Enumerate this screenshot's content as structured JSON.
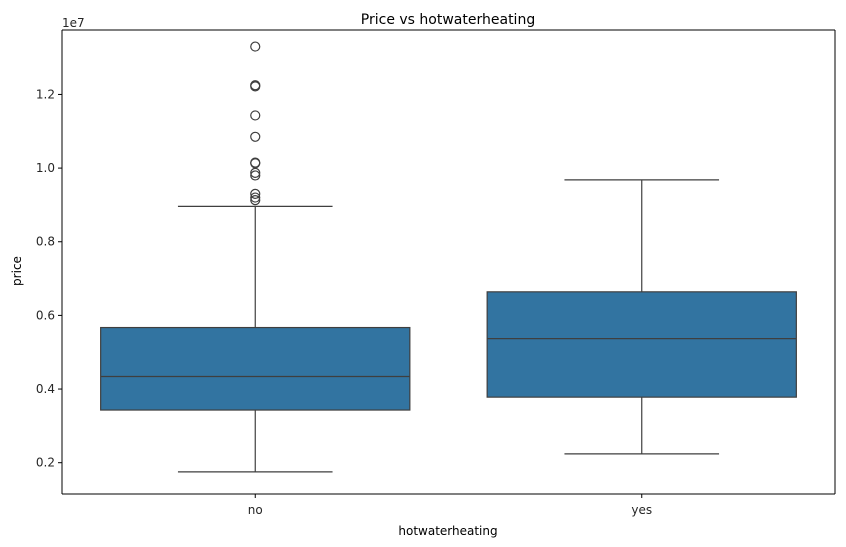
{
  "chart_data": {
    "type": "box",
    "title": "Price vs hotwaterheating",
    "xlabel": "hotwaterheating",
    "ylabel": "price",
    "y_offset_label": "1e7",
    "categories": [
      "no",
      "yes"
    ],
    "y_ticks": [
      0.2,
      0.4,
      0.6,
      0.8,
      1.0,
      1.2
    ],
    "y_tick_labels": [
      "0.2",
      "0.4",
      "0.6",
      "0.8",
      "1.0",
      "1.2"
    ],
    "ylim": [
      0.115,
      1.375
    ],
    "grid": false,
    "box_color": "#3274a1",
    "edge_color": "#3f3f3f",
    "boxes": [
      {
        "category": "no",
        "whisker_low": 0.175,
        "q1": 0.343,
        "median": 0.434,
        "q3": 0.567,
        "whisker_high": 0.896,
        "outliers": [
          1.33,
          1.225,
          1.222,
          1.143,
          1.085,
          1.015,
          1.013,
          0.987,
          0.98,
          0.93,
          0.92,
          0.913
        ]
      },
      {
        "category": "yes",
        "whisker_low": 0.224,
        "q1": 0.378,
        "median": 0.537,
        "q3": 0.664,
        "whisker_high": 0.968,
        "outliers": []
      }
    ]
  }
}
